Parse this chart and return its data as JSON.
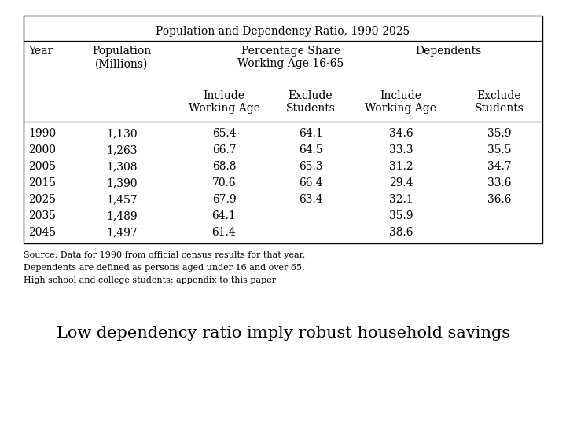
{
  "title": "Population and Dependency Ratio, 1990-2025",
  "rows": [
    [
      "1990",
      "1,130",
      "65.4",
      "64.1",
      "34.6",
      "35.9"
    ],
    [
      "2000",
      "1,263",
      "66.7",
      "64.5",
      "33.3",
      "35.5"
    ],
    [
      "2005",
      "1,308",
      "68.8",
      "65.3",
      "31.2",
      "34.7"
    ],
    [
      "2015",
      "1,390",
      "70.6",
      "66.4",
      "29.4",
      "33.6"
    ],
    [
      "2025",
      "1,457",
      "67.9",
      "63.4",
      "32.1",
      "36.6"
    ],
    [
      "2035",
      "1,489",
      "64.1",
      "",
      "35.9",
      ""
    ],
    [
      "2045",
      "1,497",
      "61.4",
      "",
      "38.6",
      ""
    ]
  ],
  "source_lines": [
    "Source: Data for 1990 from official census results for that year.",
    "Dependents are defined as persons aged under 16 and over 65.",
    "High school and college students: appendix to this paper"
  ],
  "caption": "Low dependency ratio imply robust household savings",
  "bg_color": "#ffffff",
  "text_color": "#000000",
  "font_size_table": 10,
  "font_size_caption": 15,
  "font_size_source": 8,
  "font_family": "DejaVu Serif"
}
